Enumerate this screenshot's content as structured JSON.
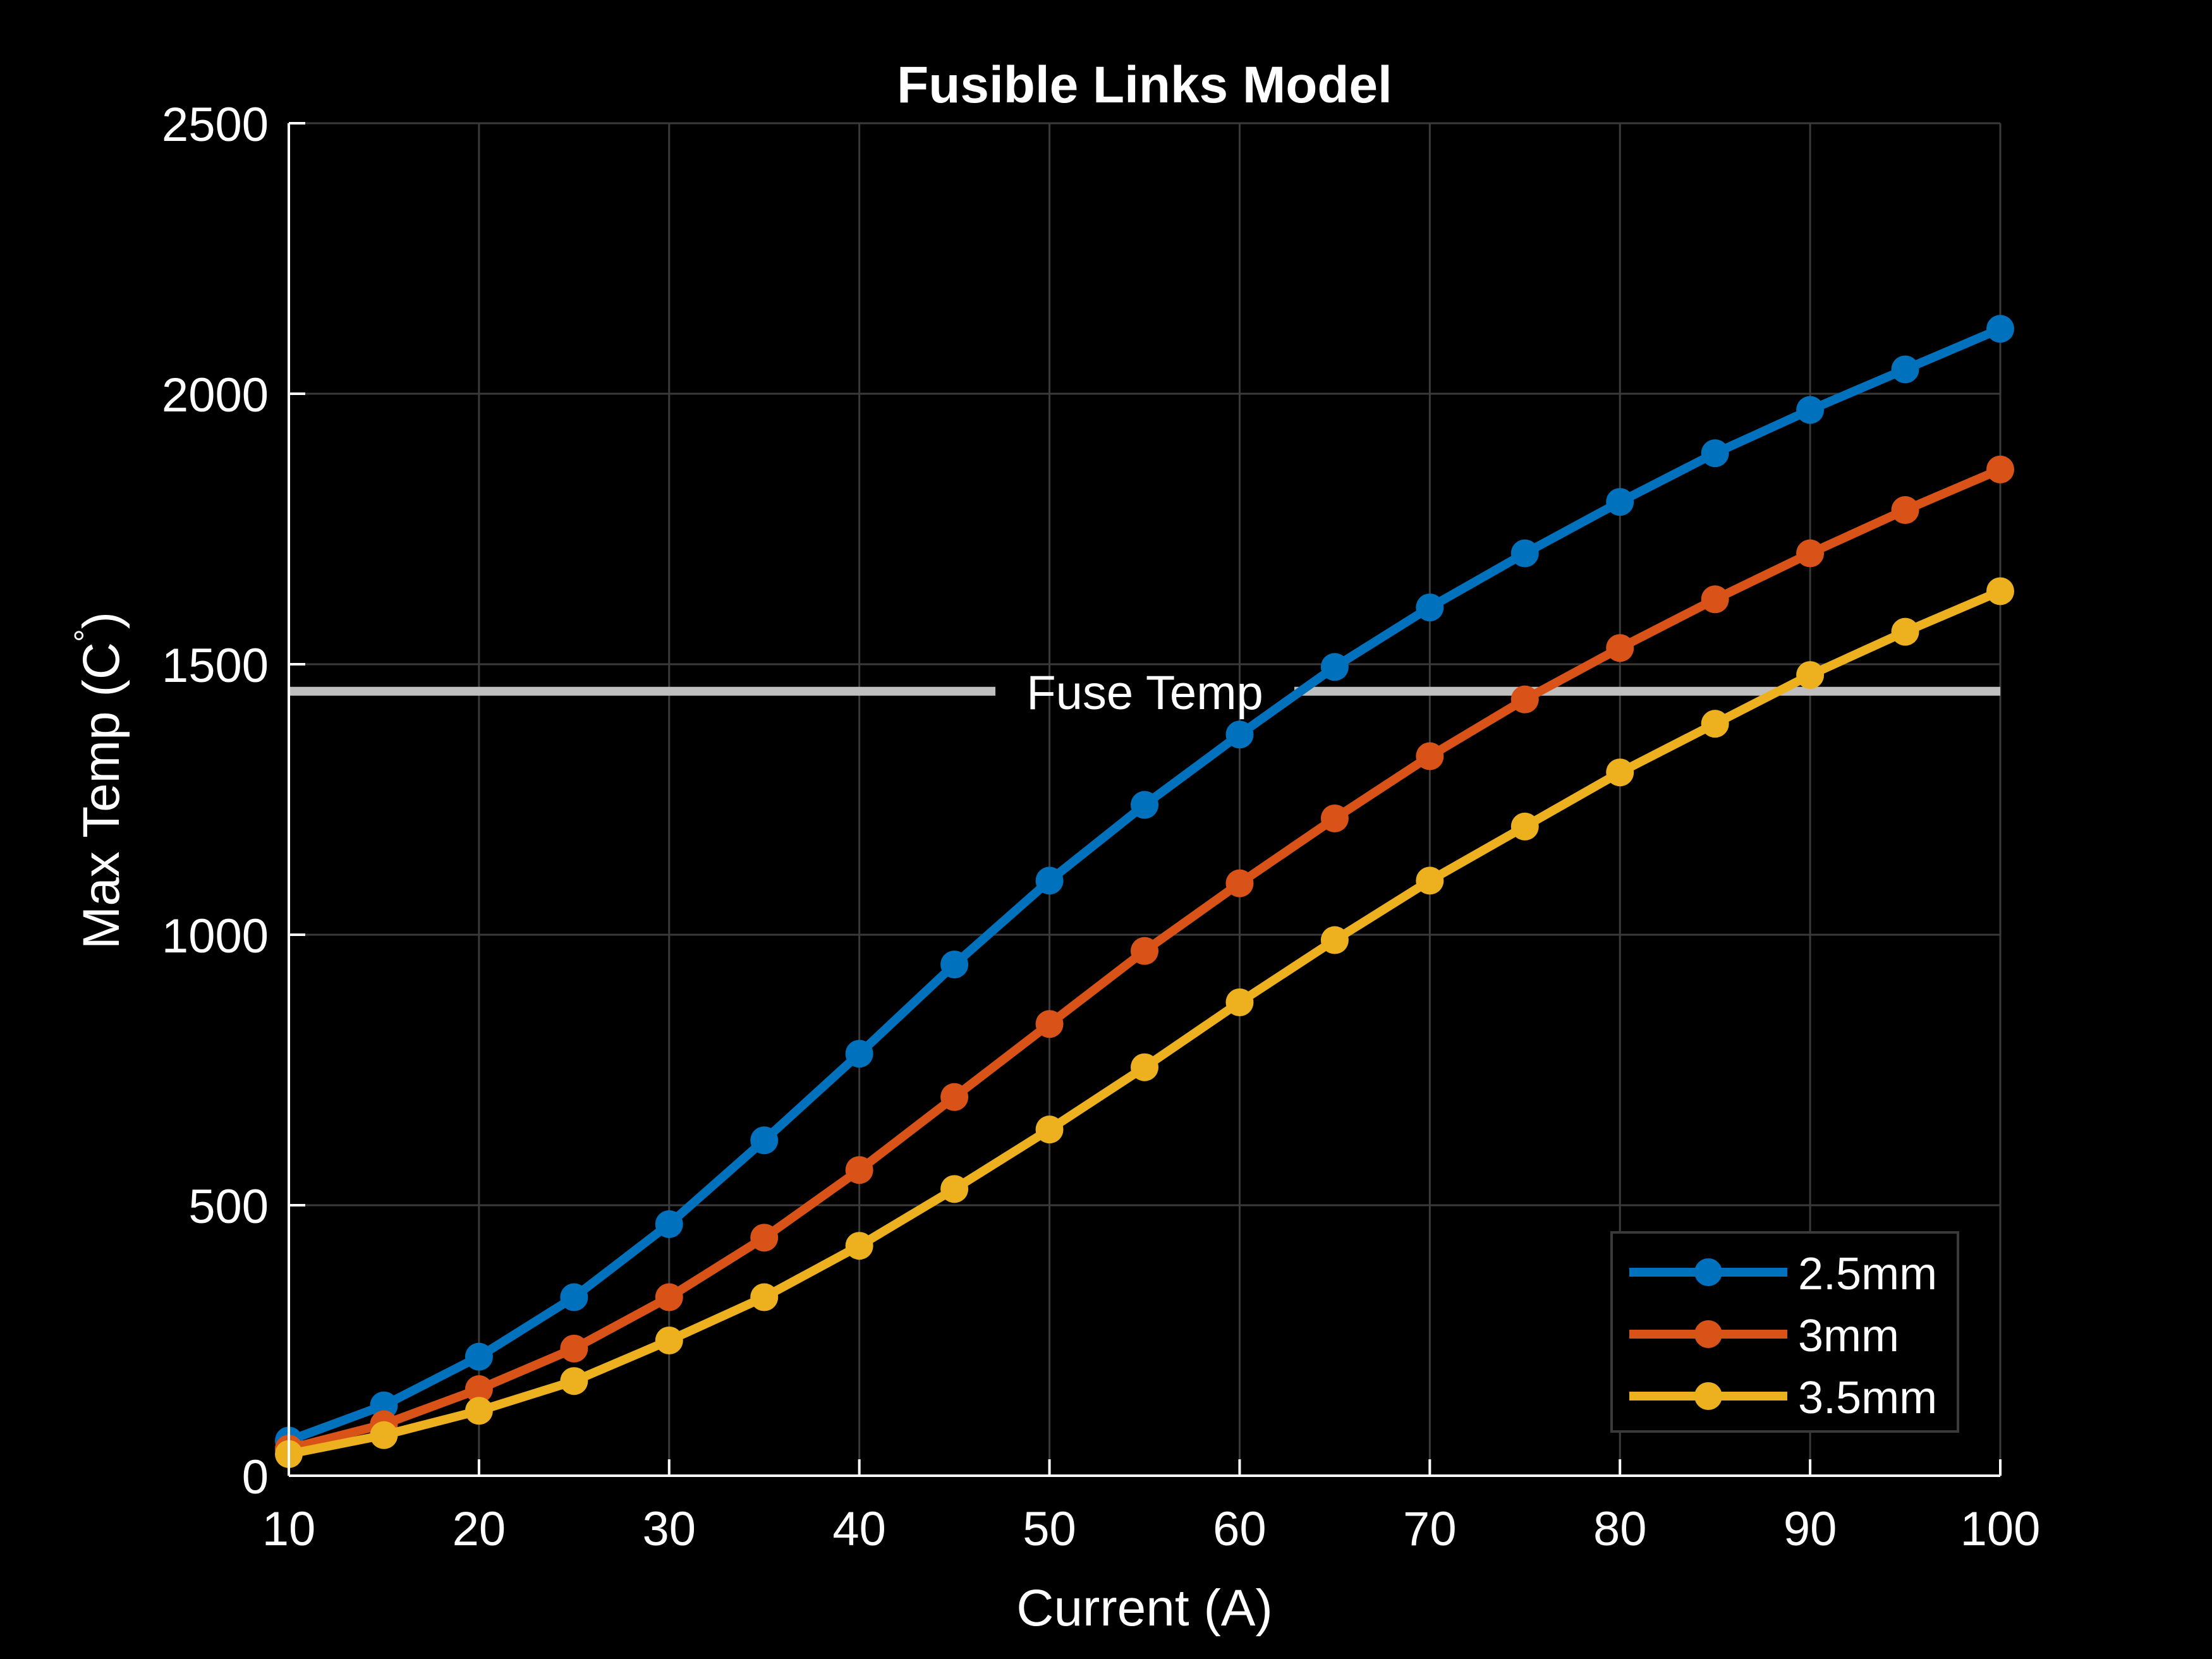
{
  "chart_data": {
    "type": "line",
    "title": "Fusible Links Model",
    "xlabel": "Current (A)",
    "ylabel": "Max Temp (C",
    "ylabel_superscript": "°",
    "ylabel_close": ")",
    "xlim": [
      10,
      100
    ],
    "ylim": [
      0,
      2500
    ],
    "xticks": [
      10,
      20,
      30,
      40,
      50,
      60,
      70,
      80,
      90,
      100
    ],
    "yticks": [
      0,
      500,
      1000,
      1500,
      2000,
      2500
    ],
    "grid": true,
    "legend_position": "bottom-right",
    "x": [
      10,
      15,
      20,
      25,
      30,
      35,
      40,
      45,
      50,
      55,
      60,
      65,
      70,
      75,
      80,
      85,
      90,
      95,
      100
    ],
    "series": [
      {
        "name": "2.5mm",
        "color": "#0072BD",
        "values": [
          65,
          130,
          220,
          330,
          465,
          620,
          780,
          945,
          1100,
          1240,
          1370,
          1495,
          1605,
          1705,
          1800,
          1890,
          1970,
          2045,
          2120
        ]
      },
      {
        "name": "3mm",
        "color": "#D95319",
        "values": [
          50,
          95,
          160,
          235,
          330,
          440,
          565,
          700,
          835,
          970,
          1095,
          1215,
          1330,
          1435,
          1530,
          1620,
          1705,
          1785,
          1860
        ]
      },
      {
        "name": "3.5mm",
        "color": "#EDB120",
        "values": [
          40,
          75,
          120,
          175,
          250,
          330,
          425,
          530,
          640,
          755,
          875,
          990,
          1100,
          1200,
          1300,
          1390,
          1480,
          1560,
          1635
        ]
      }
    ],
    "reference_line": {
      "label": "Fuse Temp",
      "y": 1450,
      "color": "#bfbfbf"
    }
  }
}
